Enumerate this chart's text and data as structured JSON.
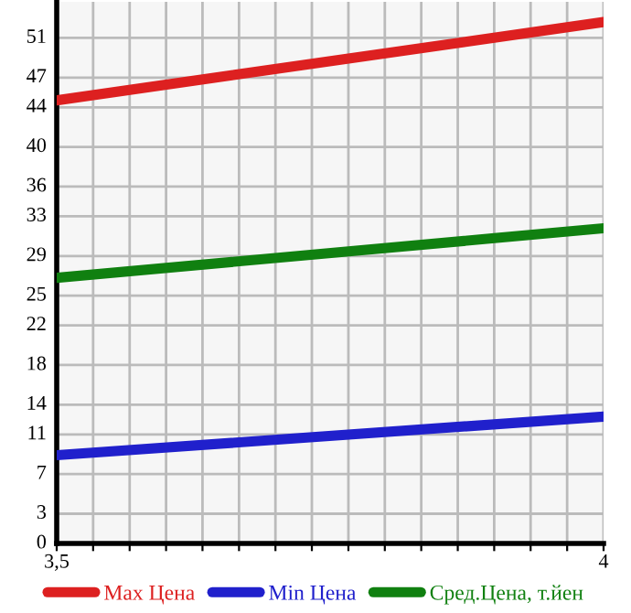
{
  "chart_data": {
    "type": "line",
    "x": [
      3.5,
      4
    ],
    "series": [
      {
        "name": "Max Цена",
        "color": "#dd2020",
        "values": [
          44.7,
          52.6
        ]
      },
      {
        "name": "Min Цена",
        "color": "#2020cc",
        "values": [
          8.9,
          12.8
        ]
      },
      {
        "name": "Сред.Цена, т.йен",
        "color": "#108010",
        "values": [
          26.8,
          31.8
        ]
      }
    ],
    "xlim": [
      3.5,
      4
    ],
    "xticks": [
      {
        "value": 3.5,
        "label": "3,5"
      },
      {
        "value": 3.5333,
        "label": null
      },
      {
        "value": 3.5667,
        "label": null
      },
      {
        "value": 3.6,
        "label": null
      },
      {
        "value": 3.6333,
        "label": null
      },
      {
        "value": 3.6667,
        "label": null
      },
      {
        "value": 3.7,
        "label": null
      },
      {
        "value": 3.7333,
        "label": null
      },
      {
        "value": 3.7667,
        "label": null
      },
      {
        "value": 3.8,
        "label": null
      },
      {
        "value": 3.8333,
        "label": null
      },
      {
        "value": 3.8667,
        "label": null
      },
      {
        "value": 3.9,
        "label": null
      },
      {
        "value": 3.9333,
        "label": null
      },
      {
        "value": 3.9667,
        "label": null
      },
      {
        "value": 4,
        "label": "4"
      }
    ],
    "ylim": [
      0,
      54.64
    ],
    "yticks": [
      0,
      3,
      7,
      11,
      14,
      18,
      22,
      25,
      29,
      33,
      36,
      40,
      44,
      47,
      51
    ],
    "grid": true,
    "legend": "bottom",
    "marker": "none",
    "line_style": "solid"
  }
}
